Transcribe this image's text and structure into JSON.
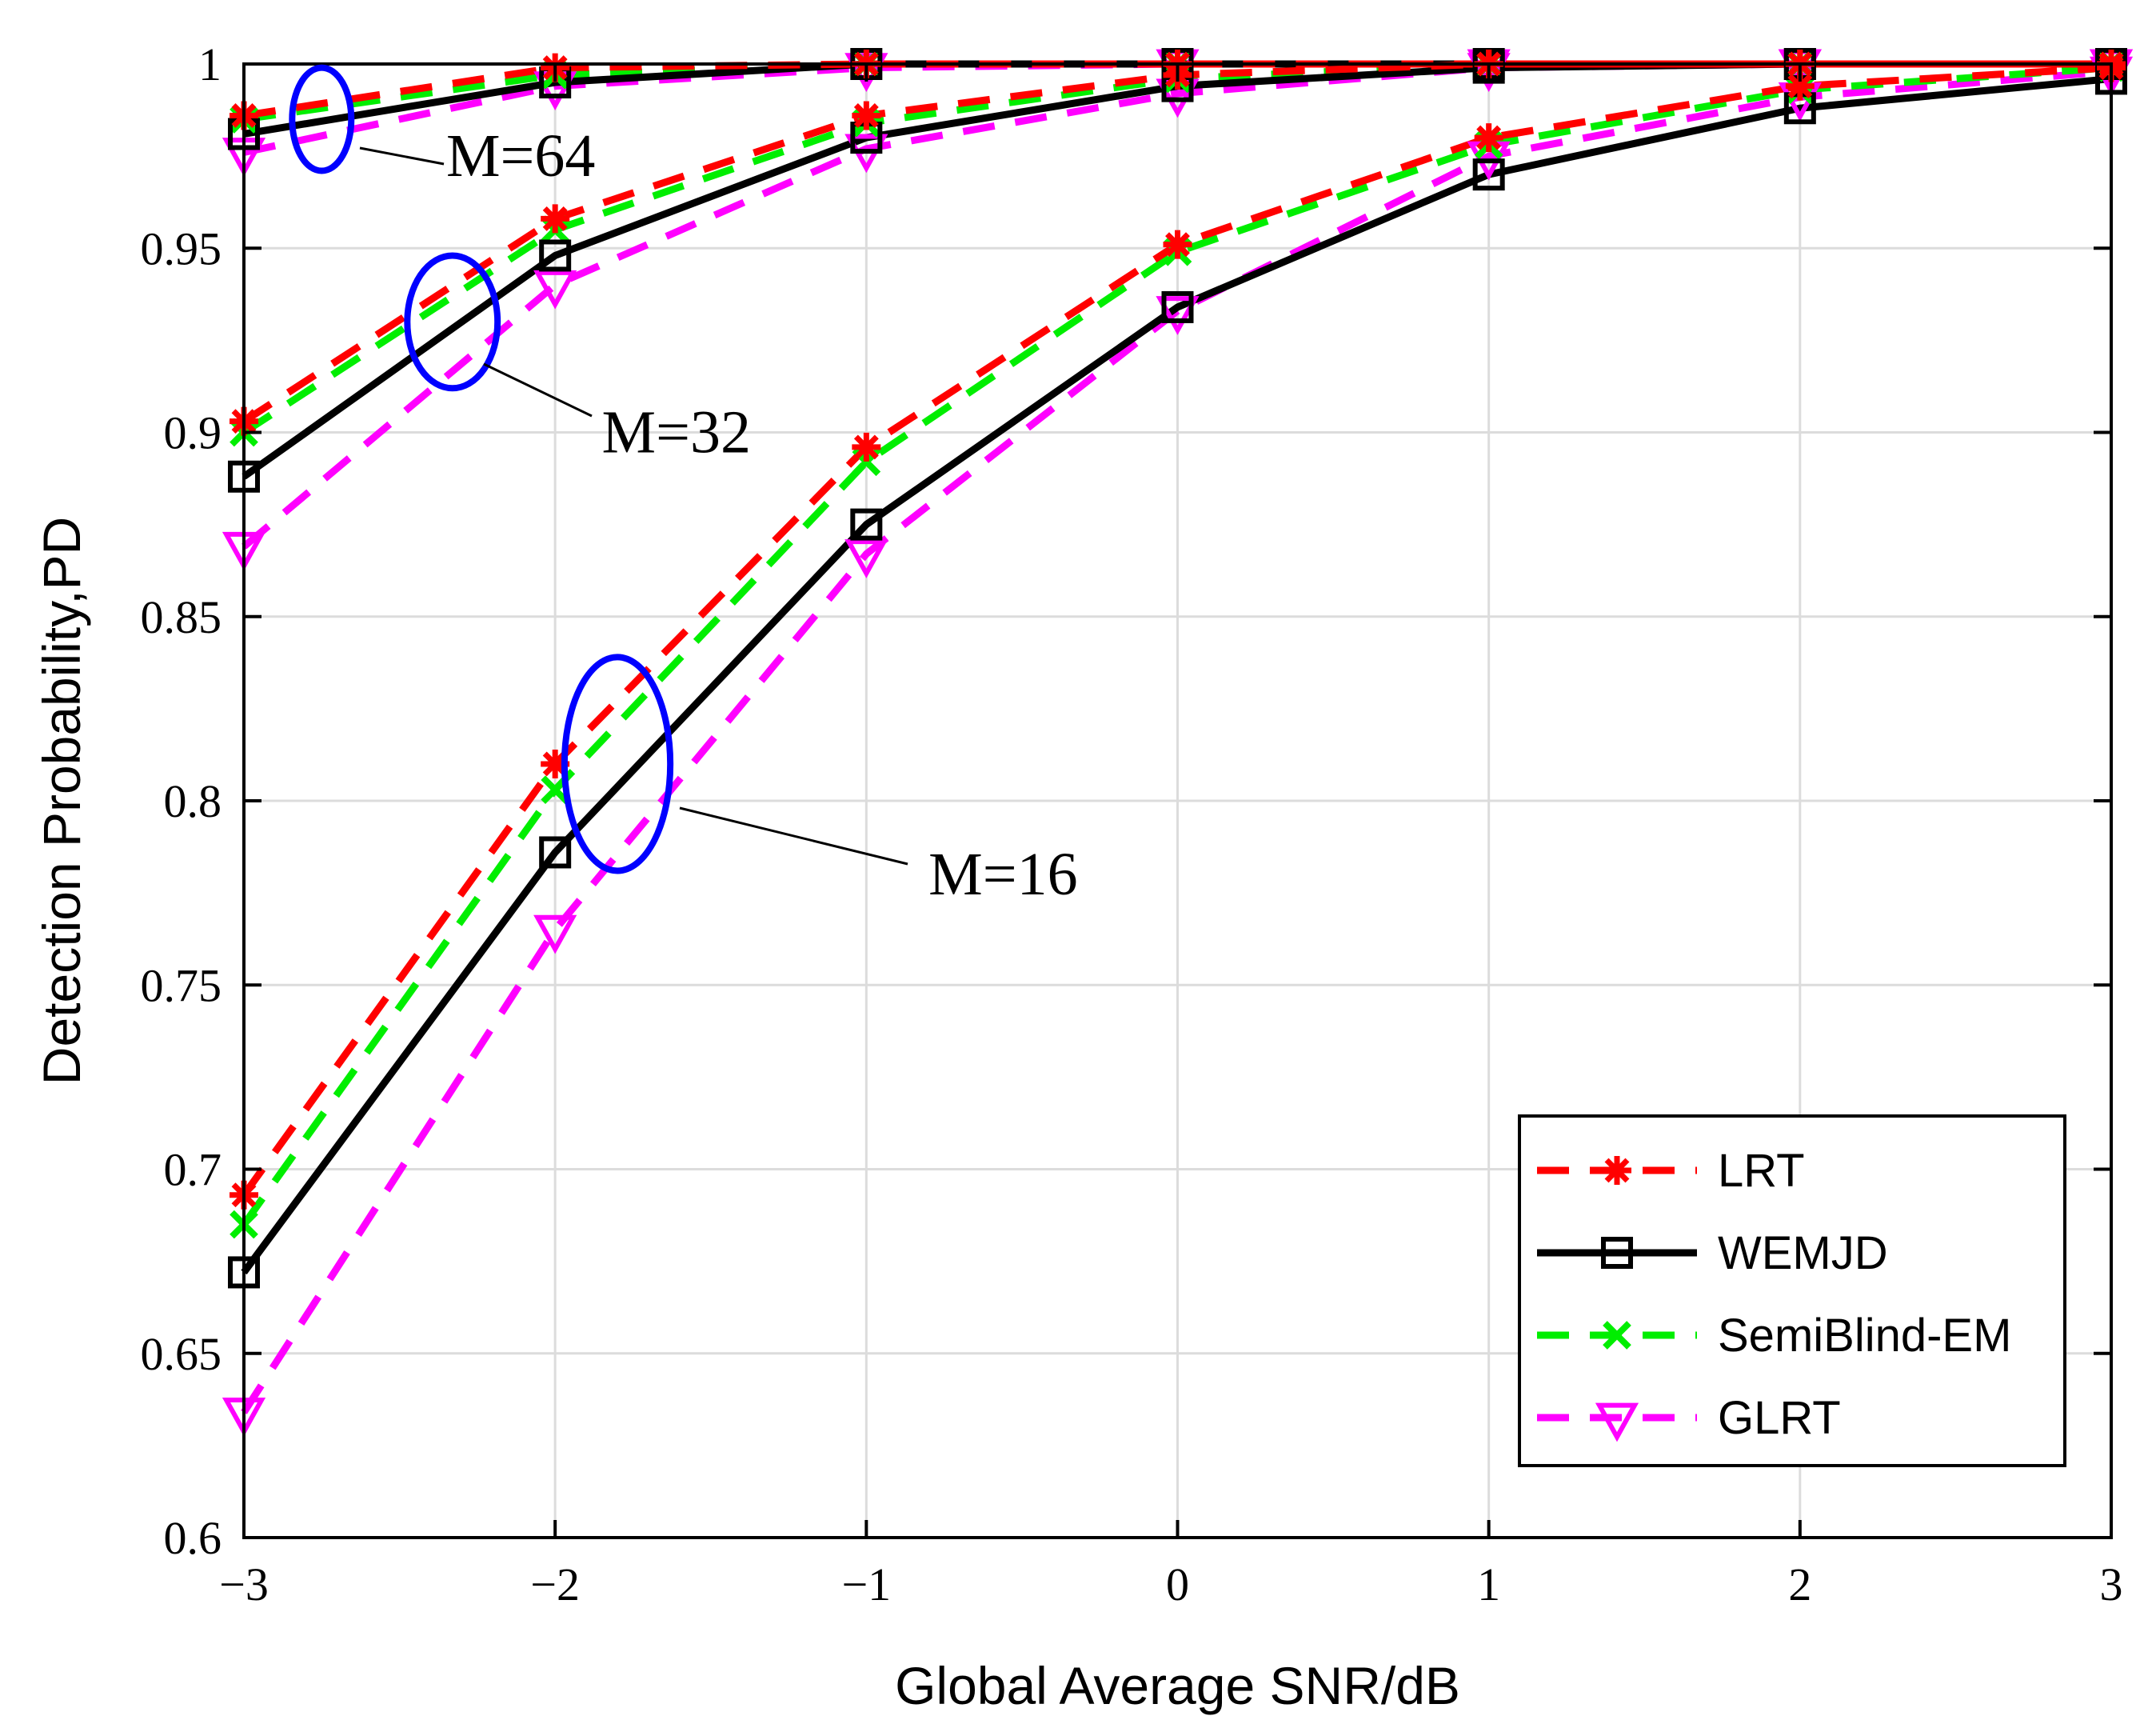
{
  "chart_data": {
    "type": "line",
    "title": "",
    "xlabel": "Global Average SNR/dB",
    "ylabel": "Detection Probability,PD",
    "xlim": [
      -3,
      3
    ],
    "ylim": [
      0.6,
      1.0
    ],
    "xticks": [
      -3,
      -2,
      -1,
      0,
      1,
      2,
      3
    ],
    "xtick_labels": [
      "−3",
      "−2",
      "−1",
      "0",
      "1",
      "2",
      "3"
    ],
    "yticks": [
      0.6,
      0.65,
      0.7,
      0.75,
      0.8,
      0.85,
      0.9,
      0.95,
      1.0
    ],
    "ytick_labels": [
      "0.6",
      "0.65",
      "0.7",
      "0.75",
      "0.8",
      "0.85",
      "0.9",
      "0.95",
      "1"
    ],
    "grid": true,
    "legend_position": "bottom-right",
    "x": [
      -3,
      -2,
      -1,
      0,
      1,
      2,
      3
    ],
    "series": [
      {
        "name": "LRT",
        "group": "M=64",
        "color": "#ff0000",
        "dash": "dashed",
        "marker": "asterisk",
        "values": [
          0.986,
          0.999,
          1.0,
          1.0,
          1.0,
          1.0,
          1.0
        ]
      },
      {
        "name": "WEMJD",
        "group": "M=64",
        "color": "#000000",
        "dash": "solid",
        "marker": "square",
        "values": [
          0.981,
          0.995,
          1.0,
          1.0,
          1.0,
          1.0,
          1.0
        ]
      },
      {
        "name": "SemiBlind-EM",
        "group": "M=64",
        "color": "#00ee00",
        "dash": "dashed",
        "marker": "x",
        "values": [
          0.985,
          0.997,
          1.0,
          1.0,
          1.0,
          1.0,
          1.0
        ]
      },
      {
        "name": "GLRT",
        "group": "M=64",
        "color": "#ff00ff",
        "dash": "dashed",
        "marker": "triangle-down",
        "values": [
          0.976,
          0.994,
          0.999,
          1.0,
          1.0,
          1.0,
          1.0
        ]
      },
      {
        "name": "LRT",
        "group": "M=32",
        "color": "#ff0000",
        "dash": "dashed",
        "marker": "asterisk",
        "values": [
          0.903,
          0.958,
          0.986,
          0.997,
          1.0,
          1.0,
          1.0
        ]
      },
      {
        "name": "WEMJD",
        "group": "M=32",
        "color": "#000000",
        "dash": "solid",
        "marker": "square",
        "values": [
          0.888,
          0.948,
          0.98,
          0.994,
          0.999,
          1.0,
          1.0
        ]
      },
      {
        "name": "SemiBlind-EM",
        "group": "M=32",
        "color": "#00ee00",
        "dash": "dashed",
        "marker": "x",
        "values": [
          0.9,
          0.955,
          0.984,
          0.996,
          1.0,
          1.0,
          1.0
        ]
      },
      {
        "name": "GLRT",
        "group": "M=32",
        "color": "#ff00ff",
        "dash": "dashed",
        "marker": "triangle-down",
        "values": [
          0.869,
          0.94,
          0.977,
          0.992,
          0.999,
          1.0,
          1.0
        ]
      },
      {
        "name": "LRT",
        "group": "M=16",
        "color": "#ff0000",
        "dash": "dashed",
        "marker": "asterisk",
        "values": [
          0.693,
          0.81,
          0.896,
          0.951,
          0.98,
          0.994,
          0.999
        ]
      },
      {
        "name": "WEMJD",
        "group": "M=16",
        "color": "#000000",
        "dash": "solid",
        "marker": "square",
        "values": [
          0.672,
          0.786,
          0.875,
          0.934,
          0.97,
          0.988,
          0.996
        ]
      },
      {
        "name": "SemiBlind-EM",
        "group": "M=16",
        "color": "#00ee00",
        "dash": "dashed",
        "marker": "x",
        "values": [
          0.685,
          0.803,
          0.892,
          0.949,
          0.978,
          0.993,
          0.999
        ]
      },
      {
        "name": "GLRT",
        "group": "M=16",
        "color": "#ff00ff",
        "dash": "dashed",
        "marker": "triangle-down",
        "values": [
          0.634,
          0.765,
          0.867,
          0.933,
          0.975,
          0.991,
          0.998
        ]
      }
    ],
    "legend": [
      {
        "name": "LRT",
        "color": "#ff0000",
        "dash": "dashed",
        "marker": "asterisk"
      },
      {
        "name": "WEMJD",
        "color": "#000000",
        "dash": "solid",
        "marker": "square"
      },
      {
        "name": "SemiBlind-EM",
        "color": "#00ee00",
        "dash": "dashed",
        "marker": "x"
      },
      {
        "name": "GLRT",
        "color": "#ff00ff",
        "dash": "dashed",
        "marker": "triangle-down"
      }
    ],
    "annotations": [
      {
        "text": "M=64",
        "ellipse_center": [
          -2.75,
          0.985
        ],
        "ellipse_radii": [
          0.095,
          0.014
        ],
        "ellipse_color": "#0000ff",
        "label_at": [
          -2.35,
          0.975
        ]
      },
      {
        "text": "M=32",
        "ellipse_center": [
          -2.33,
          0.93
        ],
        "ellipse_radii": [
          0.145,
          0.018
        ],
        "ellipse_color": "#0000ff",
        "label_at": [
          -1.85,
          0.9
        ]
      },
      {
        "text": "M=16",
        "ellipse_center": [
          -1.8,
          0.81
        ],
        "ellipse_radii": [
          0.17,
          0.029
        ],
        "ellipse_color": "#0000ff",
        "label_at": [
          -0.8,
          0.78
        ]
      }
    ]
  }
}
